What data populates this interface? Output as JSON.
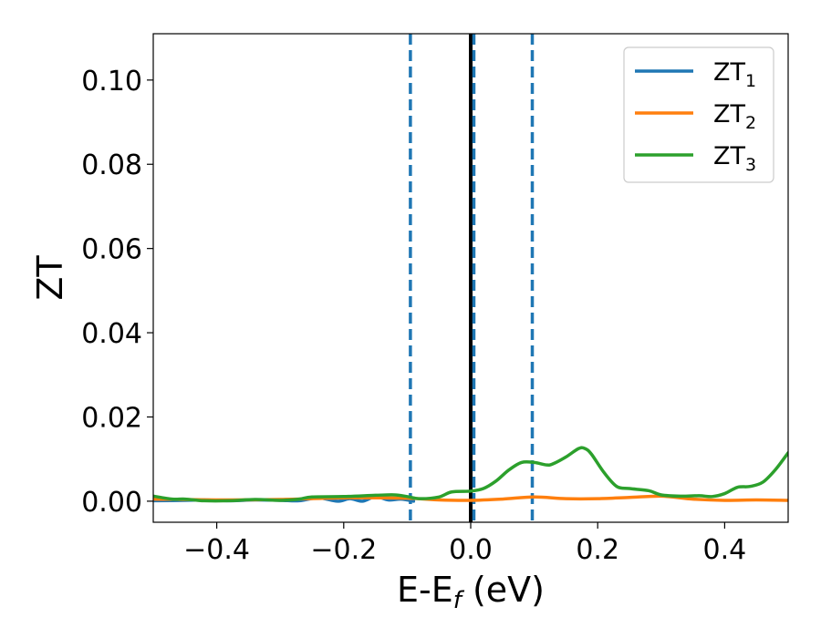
{
  "chart_data": {
    "type": "line",
    "title": "",
    "xlabel": "E-E",
    "xlabel_subscript": "f",
    "xlabel_unit": " (eV)",
    "ylabel": "ZT",
    "xlim": [
      -0.5,
      0.5
    ],
    "ylim": [
      -0.005,
      0.111
    ],
    "grid": false,
    "legend_position": "top-right",
    "x_ticks": [
      -0.4,
      -0.2,
      0.0,
      0.2,
      0.4
    ],
    "x_tick_labels": [
      "−0.4",
      "−0.2",
      "0.0",
      "0.2",
      "0.4"
    ],
    "y_ticks": [
      0.0,
      0.02,
      0.04,
      0.06,
      0.08,
      0.1
    ],
    "y_tick_labels": [
      "0.00",
      "0.02",
      "0.04",
      "0.06",
      "0.08",
      "0.10"
    ],
    "vertical_lines": [
      {
        "x": 0.0,
        "color": "#000000",
        "style": "solid"
      },
      {
        "x": -0.095,
        "color": "#1f77b4",
        "style": "dashed"
      },
      {
        "x": 0.005,
        "color": "#1f77b4",
        "style": "dashed"
      },
      {
        "x": 0.097,
        "color": "#1f77b4",
        "style": "dashed"
      }
    ],
    "series": [
      {
        "name": "ZT",
        "subscript": "1",
        "color": "#1f77b4",
        "x": [
          -0.5,
          -0.45,
          -0.42,
          -0.38,
          -0.34,
          -0.3,
          -0.27,
          -0.24,
          -0.21,
          -0.19,
          -0.17,
          -0.15,
          -0.13,
          -0.11,
          -0.09
        ],
        "y": [
          0.0001,
          0.0002,
          0.0003,
          0.0001,
          0.0003,
          0.0002,
          0.0001,
          0.0008,
          0.0,
          0.0006,
          0.0,
          0.0011,
          0.0003,
          0.0005,
          0.0
        ]
      },
      {
        "name": "ZT",
        "subscript": "2",
        "color": "#ff7f0e",
        "x": [
          -0.5,
          -0.4,
          -0.3,
          -0.2,
          -0.1,
          -0.05,
          0.0,
          0.05,
          0.1,
          0.15,
          0.2,
          0.25,
          0.3,
          0.35,
          0.4,
          0.45,
          0.5
        ],
        "y": [
          0.0005,
          0.0003,
          0.0004,
          0.0008,
          0.0007,
          0.0003,
          0.0002,
          0.0005,
          0.001,
          0.0006,
          0.0006,
          0.0009,
          0.0012,
          0.0005,
          0.0002,
          0.0003,
          0.0002
        ]
      },
      {
        "name": "ZT",
        "subscript": "3",
        "color": "#2ca02c",
        "x": [
          -0.5,
          -0.47,
          -0.45,
          -0.42,
          -0.38,
          -0.34,
          -0.3,
          -0.27,
          -0.25,
          -0.2,
          -0.15,
          -0.12,
          -0.1,
          -0.08,
          -0.05,
          -0.03,
          0.0,
          0.02,
          0.04,
          0.06,
          0.08,
          0.1,
          0.12,
          0.13,
          0.15,
          0.17,
          0.18,
          0.19,
          0.21,
          0.23,
          0.25,
          0.28,
          0.3,
          0.33,
          0.36,
          0.38,
          0.4,
          0.42,
          0.44,
          0.46,
          0.48,
          0.5
        ],
        "y": [
          0.0012,
          0.0005,
          0.0005,
          0.0001,
          0.0001,
          0.0004,
          0.0002,
          0.0005,
          0.001,
          0.0011,
          0.0014,
          0.0015,
          0.0011,
          0.0006,
          0.001,
          0.0022,
          0.0024,
          0.003,
          0.0048,
          0.0074,
          0.0092,
          0.0092,
          0.0086,
          0.0089,
          0.0105,
          0.0125,
          0.0125,
          0.0112,
          0.0068,
          0.0035,
          0.003,
          0.0025,
          0.0015,
          0.0012,
          0.0013,
          0.0011,
          0.0018,
          0.0033,
          0.0035,
          0.0045,
          0.0075,
          0.0115
        ]
      }
    ]
  }
}
